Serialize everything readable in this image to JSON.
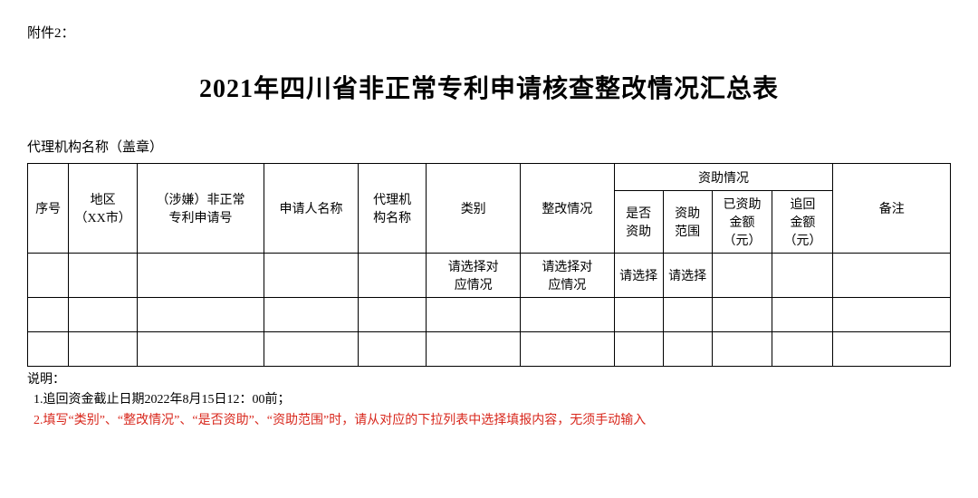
{
  "attachment_label": "附件2：",
  "title": "2021年四川省非正常专利申请核查整改情况汇总表",
  "agency_label": "代理机构名称（盖章）",
  "columns": {
    "seq": "序号",
    "region": "地区\n（XX市）",
    "patent_no": "（涉嫌）非正常\n专利申请号",
    "applicant": "申请人名称",
    "agency": "代理机\n构名称",
    "category": "类别",
    "rectify": "整改情况",
    "funding_group": "资助情况",
    "is_funded": "是否\n资助",
    "fund_scope": "资助\n范围",
    "funded_amt": "已资助\n金额\n（元）",
    "recover_amt": "追回\n金额\n（元）",
    "remark": "备注"
  },
  "row1": {
    "category": "请选择对\n应情况",
    "rectify": "请选择对\n应情况",
    "is_funded": "请选择",
    "fund_scope": "请选择"
  },
  "notes": {
    "heading": "说明：",
    "line1": "  1.追回资金截止日期2022年8月15日12：00前；",
    "line2": "  2.填写“类别”、“整改情况”、“是否资助”、“资助范围”时，请从对应的下拉列表中选择填报内容，无须手动输入"
  }
}
